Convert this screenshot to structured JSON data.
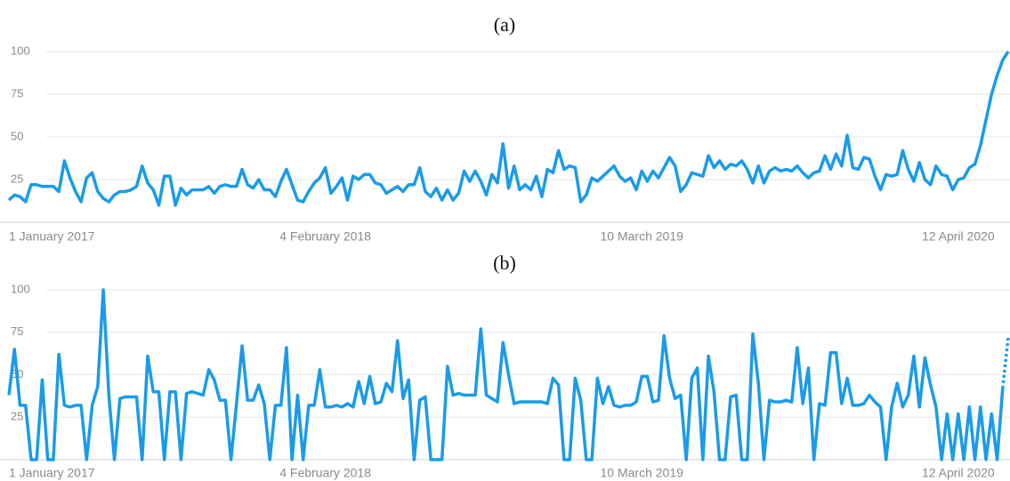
{
  "chart_data": [
    {
      "type": "line",
      "title": "(a)",
      "categories": [
        "1 January 2017",
        null,
        null,
        null,
        null,
        null,
        null,
        null,
        null,
        null,
        null,
        null,
        null,
        null,
        null,
        null,
        null,
        null,
        null,
        null,
        null,
        null,
        null,
        null,
        null,
        null,
        null,
        null,
        null,
        null,
        null,
        null,
        null,
        null,
        null,
        null,
        null,
        null,
        null,
        null,
        null,
        null,
        null,
        null,
        null,
        null,
        null,
        null,
        null,
        null,
        null,
        null,
        null,
        null,
        null,
        null,
        null,
        "4 February 2018",
        null,
        null,
        null,
        null,
        null,
        null,
        null,
        null,
        null,
        null,
        null,
        null,
        null,
        null,
        null,
        null,
        null,
        null,
        null,
        null,
        null,
        null,
        null,
        null,
        null,
        null,
        null,
        null,
        null,
        null,
        null,
        null,
        null,
        null,
        null,
        null,
        null,
        null,
        null,
        null,
        null,
        null,
        null,
        null,
        null,
        null,
        null,
        null,
        null,
        null,
        null,
        null,
        null,
        null,
        null,
        null,
        "10 March 2019",
        null,
        null,
        null,
        null,
        null,
        null,
        null,
        null,
        null,
        null,
        null,
        null,
        null,
        null,
        null,
        null,
        null,
        null,
        null,
        null,
        null,
        null,
        null,
        null,
        null,
        null,
        null,
        null,
        null,
        null,
        null,
        null,
        null,
        null,
        null,
        null,
        null,
        null,
        null,
        null,
        null,
        null,
        null,
        null,
        null,
        null,
        null,
        null,
        null,
        null,
        null,
        null,
        null,
        null,
        null,
        null,
        "12 April 2020",
        null,
        null,
        null,
        null,
        null,
        null,
        null,
        null,
        null
      ],
      "series": [
        {
          "color": "#1a9bea",
          "values": [
            13,
            16,
            15,
            12,
            22,
            22,
            21,
            21,
            21,
            18,
            36,
            26,
            18,
            12,
            26,
            29,
            18,
            14,
            12,
            16,
            18,
            18,
            19,
            21,
            33,
            23,
            19,
            10,
            27,
            27,
            10,
            20,
            16,
            19,
            19,
            19,
            21,
            17,
            21,
            22,
            21,
            21,
            31,
            22,
            20,
            25,
            19,
            19,
            15,
            24,
            31,
            22,
            13,
            12,
            18,
            23,
            26,
            32,
            17,
            21,
            26,
            13,
            27,
            25,
            28,
            28,
            23,
            22,
            17,
            19,
            21,
            18,
            22,
            22,
            32,
            18,
            15,
            20,
            13,
            19,
            13,
            17,
            30,
            24,
            30,
            24,
            16,
            28,
            23,
            46,
            20,
            33,
            19,
            22,
            19,
            27,
            15,
            31,
            29,
            42,
            31,
            33,
            32,
            12,
            16,
            26,
            24,
            27,
            30,
            33,
            27,
            24,
            26,
            19,
            30,
            24,
            30,
            26,
            32,
            38,
            33,
            18,
            22,
            29,
            28,
            27,
            39,
            32,
            36,
            31,
            34,
            33,
            36,
            31,
            23,
            33,
            23,
            30,
            32,
            30,
            31,
            30,
            33,
            29,
            26,
            29,
            30,
            39,
            31,
            40,
            33,
            51,
            32,
            31,
            38,
            37,
            27,
            19,
            28,
            27,
            28,
            42,
            31,
            24,
            35,
            25,
            22,
            33,
            28,
            27,
            19,
            25,
            26,
            32,
            34,
            45,
            60,
            75,
            86,
            95,
            100
          ]
        }
      ],
      "ylim": [
        0,
        100
      ],
      "yticks": [
        25,
        50,
        75,
        100
      ],
      "grid": true
    },
    {
      "type": "line",
      "title": "(b)",
      "categories": [
        "1 January 2017",
        null,
        null,
        null,
        null,
        null,
        null,
        null,
        null,
        null,
        null,
        null,
        null,
        null,
        null,
        null,
        null,
        null,
        null,
        null,
        null,
        null,
        null,
        null,
        null,
        null,
        null,
        null,
        null,
        null,
        null,
        null,
        null,
        null,
        null,
        null,
        null,
        null,
        null,
        null,
        null,
        null,
        null,
        null,
        null,
        null,
        null,
        null,
        null,
        null,
        null,
        null,
        null,
        null,
        null,
        null,
        null,
        "4 February 2018",
        null,
        null,
        null,
        null,
        null,
        null,
        null,
        null,
        null,
        null,
        null,
        null,
        null,
        null,
        null,
        null,
        null,
        null,
        null,
        null,
        null,
        null,
        null,
        null,
        null,
        null,
        null,
        null,
        null,
        null,
        null,
        null,
        null,
        null,
        null,
        null,
        null,
        null,
        null,
        null,
        null,
        null,
        null,
        null,
        null,
        null,
        null,
        null,
        null,
        null,
        null,
        null,
        null,
        null,
        null,
        null,
        "10 March 2019",
        null,
        null,
        null,
        null,
        null,
        null,
        null,
        null,
        null,
        null,
        null,
        null,
        null,
        null,
        null,
        null,
        null,
        null,
        null,
        null,
        null,
        null,
        null,
        null,
        null,
        null,
        null,
        null,
        null,
        null,
        null,
        null,
        null,
        null,
        null,
        null,
        null,
        null,
        null,
        null,
        null,
        null,
        null,
        null,
        null,
        null,
        null,
        null,
        null,
        null,
        null,
        null,
        null,
        null,
        null,
        null,
        "12 April 2020",
        null,
        null,
        null,
        null,
        null,
        null,
        null,
        null,
        null
      ],
      "series": [
        {
          "color": "#1a9bea",
          "dashed_last_segment": true,
          "values": [
            38,
            65,
            32,
            32,
            0,
            0,
            47,
            0,
            0,
            62,
            32,
            31,
            32,
            32,
            0,
            32,
            43,
            100,
            38,
            0,
            36,
            37,
            37,
            37,
            0,
            61,
            40,
            40,
            0,
            40,
            40,
            0,
            39,
            40,
            39,
            38,
            53,
            47,
            35,
            35,
            0,
            33,
            67,
            35,
            35,
            44,
            33,
            0,
            32,
            32,
            66,
            0,
            38,
            0,
            32,
            32,
            53,
            31,
            31,
            32,
            31,
            33,
            31,
            46,
            33,
            49,
            33,
            34,
            45,
            40,
            70,
            36,
            47,
            0,
            35,
            37,
            0,
            0,
            0,
            55,
            38,
            39,
            38,
            38,
            38,
            77,
            38,
            36,
            34,
            69,
            50,
            33,
            34,
            34,
            34,
            34,
            34,
            33,
            48,
            44,
            0,
            0,
            48,
            35,
            0,
            0,
            48,
            33,
            43,
            32,
            31,
            32,
            32,
            34,
            49,
            49,
            34,
            35,
            73,
            48,
            36,
            38,
            0,
            48,
            54,
            0,
            61,
            40,
            0,
            0,
            37,
            38,
            0,
            0,
            74,
            45,
            0,
            35,
            34,
            34,
            35,
            34,
            66,
            33,
            54,
            0,
            33,
            32,
            63,
            63,
            33,
            48,
            32,
            32,
            33,
            38,
            34,
            31,
            0,
            31,
            45,
            31,
            38,
            61,
            31,
            60,
            44,
            31,
            0,
            27,
            0,
            27,
            0,
            31,
            0,
            31,
            0,
            27,
            0,
            42,
            72
          ]
        }
      ],
      "ylim": [
        0,
        100
      ],
      "yticks": [
        25,
        50,
        75,
        100
      ],
      "grid": true
    }
  ]
}
